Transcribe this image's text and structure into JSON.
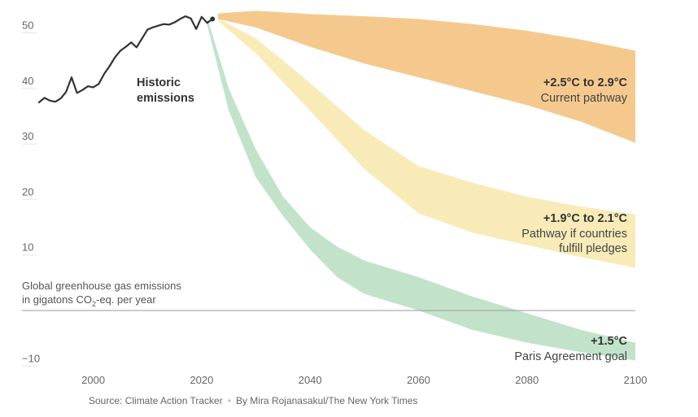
{
  "chart_data": {
    "type": "area",
    "xlim": [
      1990,
      2100
    ],
    "ylim": [
      -13,
      55
    ],
    "y_ticks": [
      50,
      40,
      30,
      20,
      10,
      -10
    ],
    "y_tick_labels": [
      "50",
      "40",
      "30",
      "20",
      "10",
      "−10"
    ],
    "x_ticks": [
      2000,
      2020,
      2040,
      2060,
      2080,
      2100
    ],
    "x_tick_labels": [
      "2000",
      "2020",
      "2040",
      "2060",
      "2080",
      "2100"
    ],
    "y_axis_note": [
      "Global greenhouse gas emissions",
      "in gigatons CO",
      "2",
      "-eq. per year"
    ],
    "historic": {
      "label": [
        "Historic",
        "emissions"
      ],
      "color": "#333333",
      "x": [
        1990,
        1991,
        1992,
        1993,
        1994,
        1995,
        1996,
        1997,
        1998,
        1999,
        2000,
        2001,
        2002,
        2003,
        2004,
        2005,
        2006,
        2007,
        2008,
        2009,
        2010,
        2011,
        2012,
        2013,
        2014,
        2015,
        2016,
        2017,
        2018,
        2019,
        2020,
        2021,
        2022
      ],
      "y": [
        37.5,
        38.3,
        37.8,
        37.6,
        38.2,
        39.4,
        42.0,
        39.2,
        39.7,
        40.4,
        40.2,
        40.8,
        42.6,
        44.0,
        45.6,
        46.8,
        47.5,
        48.3,
        47.4,
        49.0,
        50.6,
        51.0,
        51.3,
        51.6,
        51.5,
        51.9,
        52.5,
        53.0,
        52.6,
        50.7,
        52.9,
        51.8,
        52.5
      ]
    },
    "series": [
      {
        "name": "+2.5°C to 2.9°C",
        "subtitle": [
          "Current pathway"
        ],
        "color": "#f5c98e",
        "x": [
          2023,
          2030,
          2040,
          2050,
          2060,
          2070,
          2080,
          2090,
          2100
        ],
        "upper": [
          53.5,
          54.0,
          53.4,
          53.0,
          52.5,
          51.6,
          50.4,
          48.8,
          46.8
        ],
        "lower": [
          52.5,
          51.0,
          47.5,
          44.5,
          42.0,
          39.5,
          37.0,
          34.0,
          30.2
        ]
      },
      {
        "name": "+1.9°C to 2.1°C",
        "subtitle": [
          "Pathway if countries",
          "fulfill pledges"
        ],
        "color": "#f8ebb8",
        "x": [
          2023,
          2030,
          2040,
          2050,
          2060,
          2070,
          2080,
          2090,
          2100
        ],
        "upper": [
          52.6,
          49.0,
          41.0,
          32.5,
          26.0,
          23.0,
          20.5,
          18.7,
          17.3
        ],
        "lower": [
          52.2,
          46.3,
          36.0,
          25.5,
          17.5,
          14.0,
          11.8,
          9.6,
          7.7
        ]
      },
      {
        "name": "+1.5°C",
        "subtitle": [
          "Paris Agreement goal"
        ],
        "color": "#c2e3ca",
        "x": [
          2021,
          2025,
          2030,
          2035,
          2040,
          2045,
          2050,
          2060,
          2070,
          2080,
          2090,
          2100
        ],
        "upper": [
          52.8,
          40.0,
          29.0,
          20.5,
          15.0,
          11.5,
          9.0,
          6.0,
          2.5,
          -0.5,
          -3.5,
          -5.8
        ],
        "lower": [
          51.5,
          36.0,
          24.0,
          17.0,
          11.0,
          6.0,
          3.0,
          0.0,
          -3.5,
          -5.8,
          -7.5,
          -9.0
        ]
      }
    ]
  },
  "footer": {
    "source": "Source: Climate Action Tracker",
    "separator": "•",
    "byline": "By Mira Rojanasakul/The New York Times"
  }
}
